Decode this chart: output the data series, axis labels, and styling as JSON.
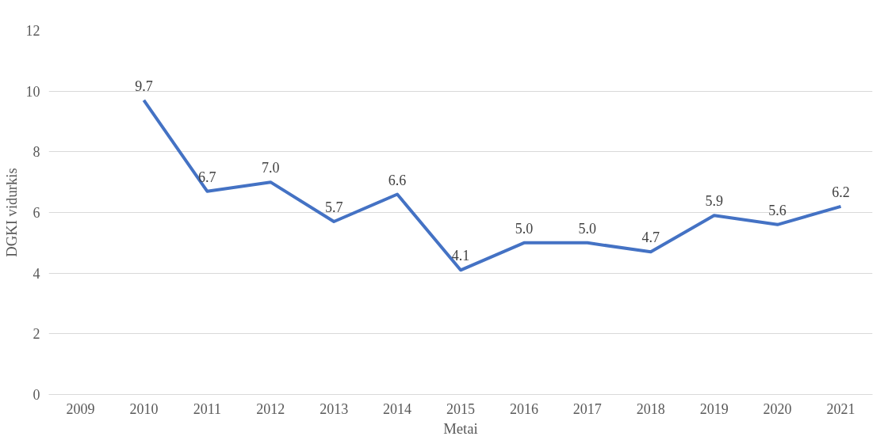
{
  "chart_data": {
    "type": "line",
    "xlabel": "Metai",
    "ylabel": "DGKI vidurkis",
    "categories": [
      "2009",
      "2010",
      "2011",
      "2012",
      "2013",
      "2014",
      "2015",
      "2016",
      "2017",
      "2018",
      "2019",
      "2020",
      "2021"
    ],
    "series": [
      {
        "color": "#4472c4",
        "values": [
          null,
          9.7,
          6.7,
          7.0,
          5.7,
          6.6,
          4.1,
          5.0,
          5.0,
          4.7,
          5.9,
          5.6,
          6.2
        ],
        "value_labels": [
          null,
          "9.7",
          "6.7",
          "7.0",
          "5.7",
          "6.6",
          "4.1",
          "5.0",
          "5.0",
          "4.7",
          "5.9",
          "5.6",
          "6.2"
        ]
      }
    ],
    "ylim": [
      0,
      12
    ],
    "yticks": [
      0,
      2,
      4,
      6,
      8,
      10,
      12
    ],
    "grid": "y",
    "marker": "none",
    "line_style": "solid"
  }
}
